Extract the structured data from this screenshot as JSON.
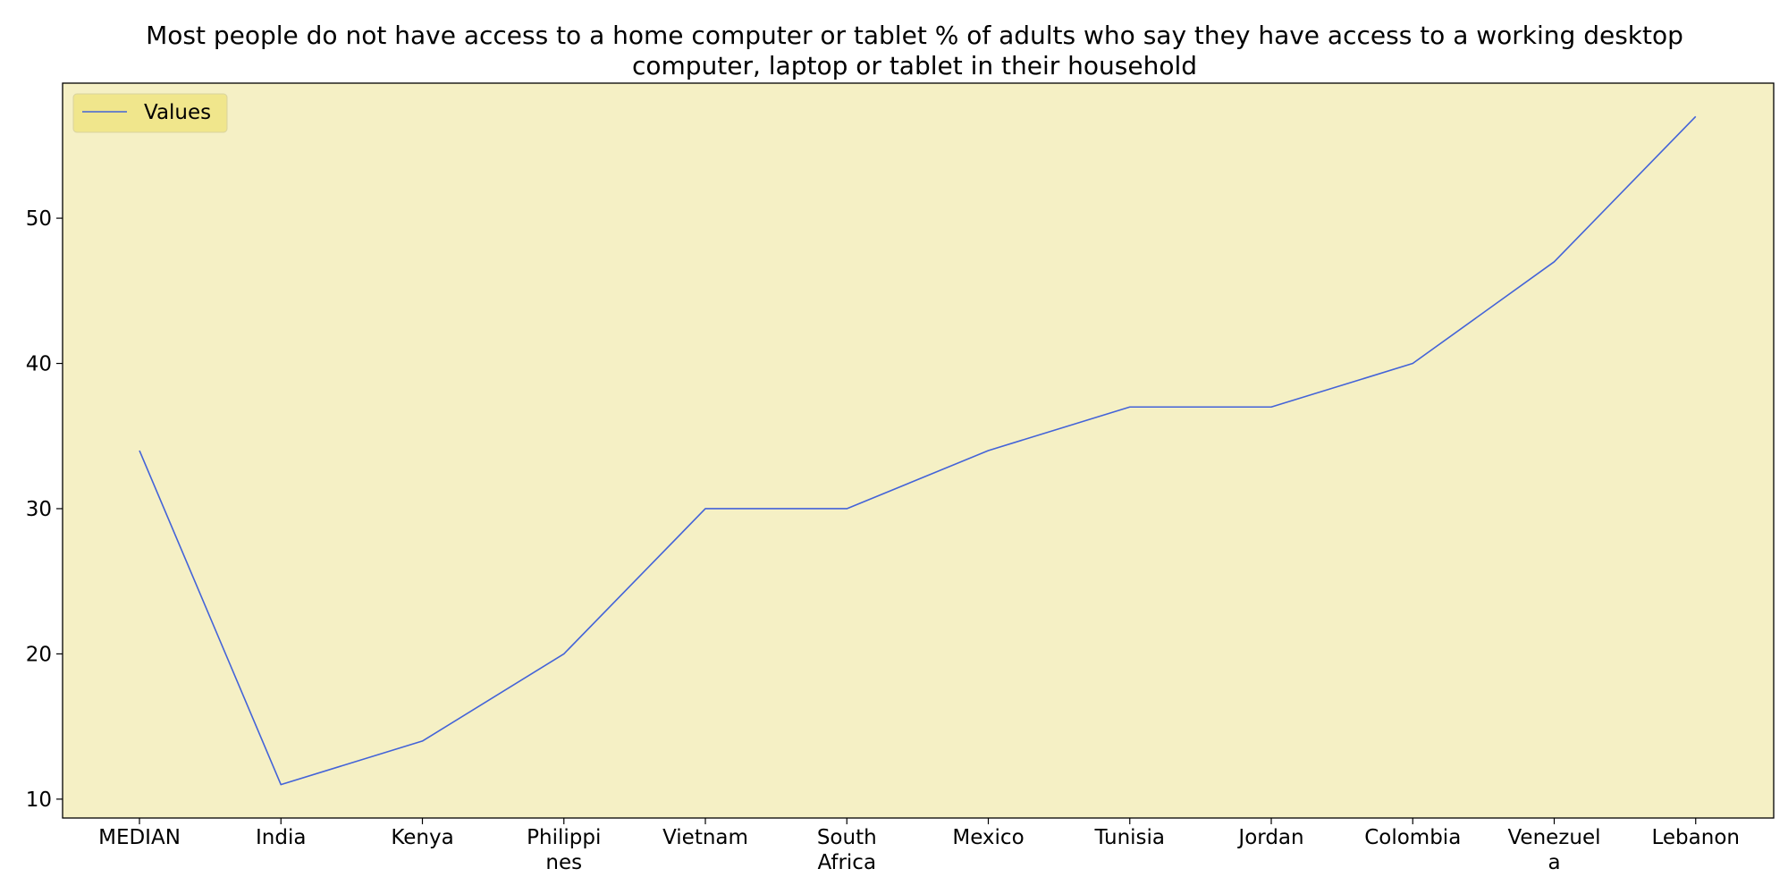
{
  "chart_data": {
    "type": "line",
    "title_lines": [
      "Most people do not have access to a home computer or tablet % of adults who say they have access to a working desktop",
      "computer, laptop or tablet in their household"
    ],
    "categories": [
      "MEDIAN",
      "India",
      "Kenya",
      "Philippines",
      "Vietnam",
      "South Africa",
      "Mexico",
      "Tunisia",
      "Jordan",
      "Colombia",
      "Venezuela",
      "Lebanon"
    ],
    "category_label_lines": [
      [
        "MEDIAN"
      ],
      [
        "India"
      ],
      [
        "Kenya"
      ],
      [
        "Philippi",
        "nes"
      ],
      [
        "Vietnam"
      ],
      [
        "South",
        "Africa"
      ],
      [
        "Mexico"
      ],
      [
        "Tunisia"
      ],
      [
        "Jordan"
      ],
      [
        "Colombia"
      ],
      [
        "Venezuel",
        "a"
      ],
      [
        "Lebanon"
      ]
    ],
    "series": [
      {
        "name": "Values",
        "values": [
          34,
          11,
          14,
          20,
          30,
          30,
          34,
          37,
          37,
          40,
          47,
          57
        ]
      }
    ],
    "y_ticks": [
      10,
      20,
      30,
      40,
      50
    ],
    "ylim": [
      8.7,
      59.3
    ],
    "xlabel": "",
    "ylabel": "",
    "grid": false,
    "legend_position": "top-left",
    "colors": {
      "plot_background": "#f5f0c5",
      "line": "#4363d8",
      "legend_background": "#f0e68c",
      "legend_border": "#d9d3a0",
      "axis": "#000000"
    }
  }
}
